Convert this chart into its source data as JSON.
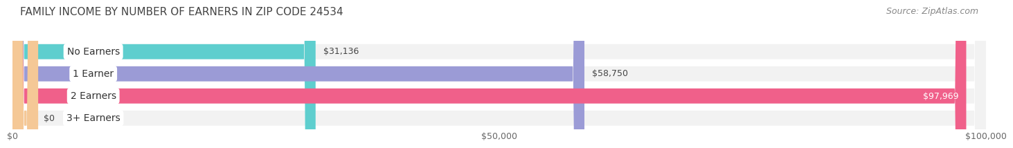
{
  "title": "FAMILY INCOME BY NUMBER OF EARNERS IN ZIP CODE 24534",
  "source": "Source: ZipAtlas.com",
  "categories": [
    "No Earners",
    "1 Earner",
    "2 Earners",
    "3+ Earners"
  ],
  "values": [
    31136,
    58750,
    97969,
    0
  ],
  "value_labels": [
    "$31,136",
    "$58,750",
    "$97,969",
    "$0"
  ],
  "bar_colors": [
    "#5ECECE",
    "#9B9BD6",
    "#F0608A",
    "#F5C896"
  ],
  "bar_bg_color": "#EFEFEF",
  "xlim": [
    0,
    100000
  ],
  "xtick_labels": [
    "$0",
    "$50,000",
    "$100,000"
  ],
  "title_fontsize": 11,
  "source_fontsize": 9,
  "label_fontsize": 10,
  "value_fontsize": 9,
  "background_color": "#FFFFFF",
  "bar_height": 0.68,
  "row_bg_color": "#F2F2F2"
}
